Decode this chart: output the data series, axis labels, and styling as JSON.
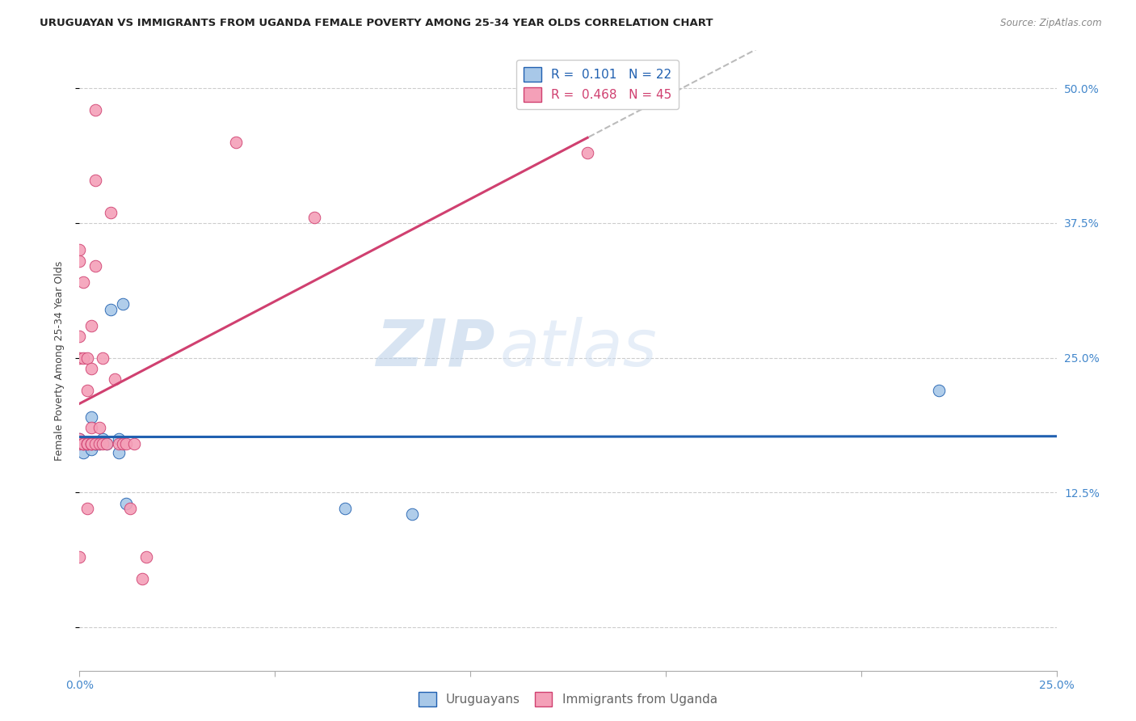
{
  "title": "URUGUAYAN VS IMMIGRANTS FROM UGANDA FEMALE POVERTY AMONG 25-34 YEAR OLDS CORRELATION CHART",
  "source": "Source: ZipAtlas.com",
  "ylabel": "Female Poverty Among 25-34 Year Olds",
  "xlim": [
    0.0,
    0.25
  ],
  "ylim": [
    -0.04,
    0.535
  ],
  "yticks": [
    0.0,
    0.125,
    0.25,
    0.375,
    0.5
  ],
  "ytick_right_labels": [
    "",
    "12.5%",
    "25.0%",
    "37.5%",
    "50.0%"
  ],
  "xticks": [
    0.0,
    0.05,
    0.1,
    0.15,
    0.2,
    0.25
  ],
  "xtick_labels": [
    "0.0%",
    "",
    "",
    "",
    "",
    "25.0%"
  ],
  "color_uruguayan": "#a8c8e8",
  "color_uganda": "#f4a0b8",
  "line_color_uruguayan": "#2060b0",
  "line_color_uganda": "#d04070",
  "tick_color": "#4488cc",
  "scatter_uruguayan_x": [
    0.0,
    0.0,
    0.001,
    0.001,
    0.002,
    0.002,
    0.003,
    0.003,
    0.003,
    0.004,
    0.004,
    0.005,
    0.006,
    0.007,
    0.008,
    0.01,
    0.01,
    0.011,
    0.012,
    0.068,
    0.085,
    0.22
  ],
  "scatter_uruguayan_y": [
    0.175,
    0.17,
    0.17,
    0.162,
    0.172,
    0.17,
    0.195,
    0.17,
    0.165,
    0.17,
    0.17,
    0.17,
    0.175,
    0.17,
    0.295,
    0.175,
    0.162,
    0.3,
    0.115,
    0.11,
    0.105,
    0.22
  ],
  "scatter_uganda_x": [
    0.0,
    0.0,
    0.0,
    0.0,
    0.0,
    0.0,
    0.0,
    0.001,
    0.001,
    0.001,
    0.001,
    0.001,
    0.002,
    0.002,
    0.002,
    0.002,
    0.002,
    0.002,
    0.003,
    0.003,
    0.003,
    0.003,
    0.003,
    0.003,
    0.004,
    0.004,
    0.004,
    0.004,
    0.005,
    0.005,
    0.006,
    0.006,
    0.007,
    0.008,
    0.009,
    0.01,
    0.011,
    0.012,
    0.013,
    0.014,
    0.016,
    0.017,
    0.04,
    0.06,
    0.13
  ],
  "scatter_uganda_y": [
    0.17,
    0.175,
    0.35,
    0.34,
    0.27,
    0.25,
    0.065,
    0.17,
    0.17,
    0.17,
    0.32,
    0.25,
    0.17,
    0.17,
    0.17,
    0.25,
    0.22,
    0.11,
    0.17,
    0.17,
    0.28,
    0.24,
    0.185,
    0.17,
    0.17,
    0.48,
    0.415,
    0.335,
    0.17,
    0.185,
    0.25,
    0.17,
    0.17,
    0.385,
    0.23,
    0.17,
    0.17,
    0.17,
    0.11,
    0.17,
    0.045,
    0.065,
    0.45,
    0.38,
    0.44
  ],
  "watermark_zip": "ZIP",
  "watermark_atlas": "atlas",
  "background_color": "#ffffff",
  "grid_color": "#cccccc",
  "title_fontsize": 9.5,
  "axis_label_fontsize": 9,
  "tick_fontsize": 10,
  "legend_fontsize": 11
}
